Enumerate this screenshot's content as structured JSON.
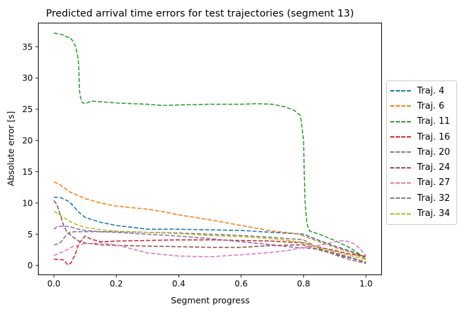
{
  "chart_data": {
    "type": "line",
    "title": "Predicted arrival time errors for test trajectories (segment 13)",
    "xlabel": "Segment progress",
    "ylabel": "Absolute error [s]",
    "xlim": [
      -0.05,
      1.05
    ],
    "ylim": [
      -1.5,
      38.8
    ],
    "xticks": [
      0.0,
      0.2,
      0.4,
      0.6,
      0.8,
      1.0
    ],
    "xtick_labels": [
      "0.0",
      "0.2",
      "0.4",
      "0.6",
      "0.8",
      "1.0"
    ],
    "yticks": [
      0,
      5,
      10,
      15,
      20,
      25,
      30,
      35
    ],
    "ytick_labels": [
      "0",
      "5",
      "10",
      "15",
      "20",
      "25",
      "30",
      "35"
    ],
    "grid": false,
    "legend_position": "outside-right",
    "line_style": "dashed",
    "series": [
      {
        "name": "Traj. 4",
        "color": "#1f77b4",
        "x": [
          0,
          0.02,
          0.05,
          0.08,
          0.1,
          0.15,
          0.2,
          0.3,
          0.4,
          0.5,
          0.6,
          0.7,
          0.8,
          0.85,
          0.9,
          0.95,
          1.0
        ],
        "y": [
          10.9,
          10.9,
          10.2,
          8.5,
          7.7,
          6.9,
          6.4,
          5.8,
          5.8,
          5.7,
          5.6,
          5.3,
          5.0,
          4.0,
          3.1,
          2.3,
          1.3
        ]
      },
      {
        "name": "Traj. 6",
        "color": "#ff7f0e",
        "x": [
          0,
          0.02,
          0.05,
          0.1,
          0.15,
          0.2,
          0.3,
          0.35,
          0.4,
          0.5,
          0.6,
          0.7,
          0.78,
          0.8,
          0.85,
          0.9,
          0.95,
          1.0
        ],
        "y": [
          13.4,
          12.9,
          11.8,
          10.7,
          10.0,
          9.5,
          9.0,
          8.6,
          8.1,
          7.3,
          6.4,
          5.5,
          5.1,
          4.7,
          3.8,
          2.9,
          2.1,
          1.0
        ]
      },
      {
        "name": "Traj. 11",
        "color": "#2ca02c",
        "x": [
          0,
          0.02,
          0.03,
          0.04,
          0.05,
          0.06,
          0.07,
          0.078,
          0.08,
          0.082,
          0.085,
          0.09,
          0.1,
          0.12,
          0.15,
          0.18,
          0.2,
          0.25,
          0.3,
          0.35,
          0.4,
          0.5,
          0.6,
          0.65,
          0.7,
          0.74,
          0.77,
          0.79,
          0.8,
          0.802,
          0.805,
          0.81,
          0.815,
          0.82,
          0.85,
          0.9,
          0.95,
          1.0
        ],
        "y": [
          37.2,
          37.0,
          36.9,
          36.6,
          36.5,
          36.0,
          35.0,
          33.0,
          31.5,
          28.0,
          27.0,
          26.1,
          25.9,
          26.3,
          26.2,
          26.1,
          26.0,
          25.9,
          25.8,
          25.6,
          25.7,
          25.8,
          25.8,
          25.9,
          25.8,
          25.4,
          24.8,
          24.0,
          20.0,
          15.0,
          10.0,
          7.0,
          6.0,
          5.5,
          5.0,
          4.0,
          2.8,
          1.1
        ]
      },
      {
        "name": "Traj. 16",
        "color": "#d62728",
        "x": [
          0,
          0.03,
          0.045,
          0.055,
          0.07,
          0.08,
          0.1,
          0.12,
          0.15,
          0.2,
          0.3,
          0.4,
          0.5,
          0.6,
          0.7,
          0.8,
          0.85,
          0.9,
          0.95,
          1.0
        ],
        "y": [
          1.0,
          0.9,
          0.1,
          0.4,
          2.0,
          3.5,
          4.7,
          4.2,
          3.8,
          3.9,
          4.0,
          4.1,
          4.1,
          4.0,
          3.9,
          3.6,
          2.9,
          2.4,
          1.8,
          1.5
        ]
      },
      {
        "name": "Traj. 20",
        "color": "#9467bd",
        "x": [
          0,
          0.01,
          0.03,
          0.05,
          0.08,
          0.1,
          0.15,
          0.2,
          0.3,
          0.4,
          0.5,
          0.6,
          0.7,
          0.75,
          0.8,
          0.85,
          0.9,
          0.95,
          1.0
        ],
        "y": [
          5.8,
          6.2,
          6.3,
          6.2,
          5.8,
          5.6,
          5.4,
          5.3,
          5.0,
          4.7,
          4.3,
          3.8,
          3.3,
          3.0,
          2.8,
          2.6,
          2.0,
          1.3,
          0.5
        ]
      },
      {
        "name": "Traj. 24",
        "color": "#8c564b",
        "x": [
          0,
          0.01,
          0.02,
          0.03,
          0.04,
          0.06,
          0.08,
          0.1,
          0.15,
          0.2,
          0.3,
          0.4,
          0.5,
          0.6,
          0.7,
          0.8,
          0.85,
          0.9,
          0.95,
          1.0
        ],
        "y": [
          10.4,
          9.7,
          8.2,
          6.6,
          5.5,
          4.6,
          3.9,
          3.6,
          3.3,
          3.2,
          3.1,
          3.0,
          2.9,
          2.9,
          3.2,
          3.3,
          2.5,
          1.8,
          1.2,
          0.5
        ]
      },
      {
        "name": "Traj. 27",
        "color": "#e377c2",
        "x": [
          0,
          0.03,
          0.06,
          0.1,
          0.15,
          0.2,
          0.3,
          0.4,
          0.5,
          0.6,
          0.7,
          0.75,
          0.8,
          0.85,
          0.9,
          0.93,
          0.96,
          0.98,
          1.0
        ],
        "y": [
          1.6,
          2.2,
          3.0,
          3.5,
          3.6,
          3.3,
          2.0,
          1.5,
          1.4,
          1.7,
          2.1,
          2.4,
          2.9,
          3.2,
          3.8,
          4.0,
          3.5,
          2.7,
          1.5
        ]
      },
      {
        "name": "Traj. 32",
        "color": "#7f7f7f",
        "x": [
          0,
          0.01,
          0.02,
          0.03,
          0.04,
          0.05,
          0.07,
          0.1,
          0.15,
          0.2,
          0.3,
          0.4,
          0.5,
          0.6,
          0.7,
          0.8,
          0.85,
          0.9,
          0.95,
          1.0
        ],
        "y": [
          3.3,
          3.4,
          3.6,
          4.2,
          4.9,
          5.3,
          5.4,
          5.4,
          5.4,
          5.4,
          5.3,
          5.2,
          5.0,
          4.8,
          4.5,
          4.1,
          2.7,
          1.7,
          0.9,
          0.3
        ]
      },
      {
        "name": "Traj. 34",
        "color": "#bcbd22",
        "x": [
          0,
          0.03,
          0.06,
          0.08,
          0.1,
          0.15,
          0.2,
          0.3,
          0.4,
          0.5,
          0.6,
          0.7,
          0.8,
          0.85,
          0.9,
          0.95,
          1.0
        ],
        "y": [
          8.7,
          7.7,
          6.8,
          6.4,
          6.1,
          5.7,
          5.5,
          5.3,
          5.1,
          4.8,
          4.6,
          4.3,
          3.7,
          2.8,
          2.2,
          1.6,
          0.9
        ]
      }
    ]
  }
}
